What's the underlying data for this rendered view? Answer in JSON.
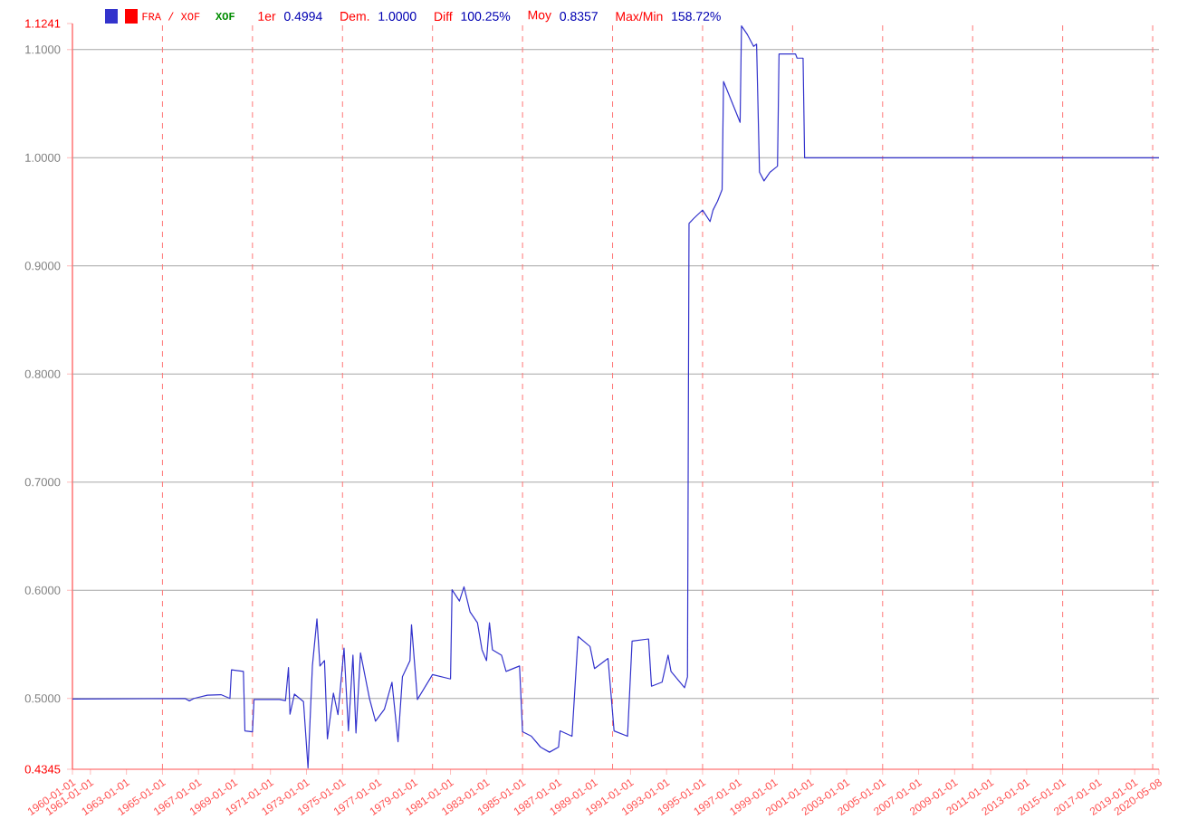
{
  "chart_data": {
    "type": "line",
    "annotations": [
      "XOF",
      "1er",
      "0.4994",
      "Dem.",
      "1.0000",
      "Diff",
      "100.25%",
      "Moy",
      "0.8357",
      "Max/Min",
      "158.72%"
    ],
    "series": [
      {
        "name": "FRA / XOF",
        "color": "#3333cc",
        "x": [
          "1960-01",
          "1966-04",
          "1966-07",
          "1966-10",
          "1967-07",
          "1968-04",
          "1968-10",
          "1968-11",
          "1969-07",
          "1969-08",
          "1970-01",
          "1970-02",
          "1971-07",
          "1971-11",
          "1972-01",
          "1972-02",
          "1972-05",
          "1972-11",
          "1973-02",
          "1973-05",
          "1973-08",
          "1973-10",
          "1974-01",
          "1974-03",
          "1974-07",
          "1974-10",
          "1975-02",
          "1975-05",
          "1975-08",
          "1975-10",
          "1976-01",
          "1976-07",
          "1976-11",
          "1977-05",
          "1977-10",
          "1978-02",
          "1978-05",
          "1978-10",
          "1978-11",
          "1979-03",
          "1980-01",
          "1981-01",
          "1981-02",
          "1981-07",
          "1981-10",
          "1982-02",
          "1982-07",
          "1982-10",
          "1983-01",
          "1983-03",
          "1983-05",
          "1983-11",
          "1984-02",
          "1984-11",
          "1985-01",
          "1985-07",
          "1986-01",
          "1986-07",
          "1987-01",
          "1987-02",
          "1987-10",
          "1988-02",
          "1988-10",
          "1989-01",
          "1989-10",
          "1990-02",
          "1990-11",
          "1991-02",
          "1992-01",
          "1992-03",
          "1992-10",
          "1993-02",
          "1993-04",
          "1993-10",
          "1994-01",
          "1994-03",
          "1994-04",
          "1994-07",
          "1995-01",
          "1995-06",
          "1995-08",
          "1995-11",
          "1996-02",
          "1996-03",
          "1996-07",
          "1997-02",
          "1997-03",
          "1997-07",
          "1997-11",
          "1998-01",
          "1998-03",
          "1998-06",
          "1998-10",
          "1999-03",
          "1999-04",
          "2000-03",
          "2000-04",
          "2000-08",
          "2000-09",
          "2020-05-08"
        ],
        "values": [
          0.4994,
          0.5,
          0.4978,
          0.5,
          0.503,
          0.5035,
          0.5,
          0.5264,
          0.525,
          0.47,
          0.4692,
          0.499,
          0.499,
          0.498,
          0.5285,
          0.4854,
          0.504,
          0.497,
          0.4357,
          0.5302,
          0.5735,
          0.53,
          0.535,
          0.4627,
          0.505,
          0.485,
          0.5465,
          0.47,
          0.54,
          0.4681,
          0.5422,
          0.5,
          0.4789,
          0.49,
          0.515,
          0.46,
          0.52,
          0.535,
          0.5681,
          0.499,
          0.5221,
          0.518,
          0.6005,
          0.59,
          0.6032,
          0.58,
          0.57,
          0.545,
          0.535,
          0.57,
          0.545,
          0.54,
          0.525,
          0.53,
          0.4692,
          0.465,
          0.455,
          0.4503,
          0.455,
          0.47,
          0.465,
          0.5573,
          0.548,
          0.5276,
          0.537,
          0.47,
          0.465,
          0.553,
          0.555,
          0.5113,
          0.515,
          0.54,
          0.525,
          0.515,
          0.51,
          0.52,
          0.9392,
          0.9436,
          0.9516,
          0.941,
          0.9516,
          0.9598,
          0.9705,
          1.0705,
          1.057,
          1.0327,
          1.1219,
          1.1137,
          1.1029,
          1.105,
          0.9867,
          0.9786,
          0.9867,
          0.9922,
          1.0959,
          1.0959,
          1.0921,
          1.0921,
          1.0,
          1.0
        ]
      }
    ],
    "xlim": [
      "1960-01-01",
      "2020-05-08"
    ],
    "xticks": [
      "1960-01-01",
      "1961-01-01",
      "1963-01-01",
      "1965-01-01",
      "1967-01-01",
      "1969-01-01",
      "1971-01-01",
      "1973-01-01",
      "1975-01-01",
      "1977-01-01",
      "1979-01-01",
      "1981-01-01",
      "1983-01-01",
      "1985-01-01",
      "1987-01-01",
      "1989-01-01",
      "1991-01-01",
      "1993-01-01",
      "1995-01-01",
      "1997-01-01",
      "1999-01-01",
      "2001-01-01",
      "2003-01-01",
      "2005-01-01",
      "2007-01-01",
      "2009-01-01",
      "2011-01-01",
      "2013-01-01",
      "2015-01-01",
      "2017-01-01",
      "2019-01-01",
      "2020-05-08"
    ],
    "ylim": [
      0.4345,
      1.1241
    ],
    "yticks": [
      {
        "value": 0.4345,
        "label": "0.4345"
      },
      {
        "value": 0.5,
        "label": "0.5000"
      },
      {
        "value": 0.6,
        "label": "0.6000"
      },
      {
        "value": 0.7,
        "label": "0.7000"
      },
      {
        "value": 0.8,
        "label": "0.8000"
      },
      {
        "value": 0.9,
        "label": "0.9000"
      },
      {
        "value": 1.0,
        "label": "1.0000"
      },
      {
        "value": 1.1,
        "label": "1.1000"
      },
      {
        "value": 1.1241,
        "label": "1.1241"
      }
    ],
    "grid": "y",
    "legend": "top left",
    "marker": "none",
    "line_style": "solid",
    "ref_lines": [
      {
        "axis": "x",
        "value": "1965-01-01",
        "color": "#ff7777",
        "line_style": "dashed"
      },
      {
        "axis": "x",
        "value": "1970-01-01",
        "color": "#ff7777",
        "line_style": "dashed"
      },
      {
        "axis": "x",
        "value": "1975-01-01",
        "color": "#ff7777",
        "line_style": "dashed"
      },
      {
        "axis": "x",
        "value": "1980-01-01",
        "color": "#ff7777",
        "line_style": "dashed"
      },
      {
        "axis": "x",
        "value": "1985-01-01",
        "color": "#ff7777",
        "line_style": "dashed"
      },
      {
        "axis": "x",
        "value": "1990-01-01",
        "color": "#ff7777",
        "line_style": "dashed"
      },
      {
        "axis": "x",
        "value": "1995-01-01",
        "color": "#ff7777",
        "line_style": "dashed"
      },
      {
        "axis": "x",
        "value": "2000-01-01",
        "color": "#ff7777",
        "line_style": "dashed"
      },
      {
        "axis": "x",
        "value": "2005-01-01",
        "color": "#ff7777",
        "line_style": "dashed"
      },
      {
        "axis": "x",
        "value": "2010-01-01",
        "color": "#ff7777",
        "line_style": "dashed"
      },
      {
        "axis": "x",
        "value": "2015-01-01",
        "color": "#ff7777",
        "line_style": "dashed"
      },
      {
        "axis": "x",
        "value": "2020-01-01",
        "color": "#ff7777",
        "line_style": "dashed"
      }
    ]
  }
}
